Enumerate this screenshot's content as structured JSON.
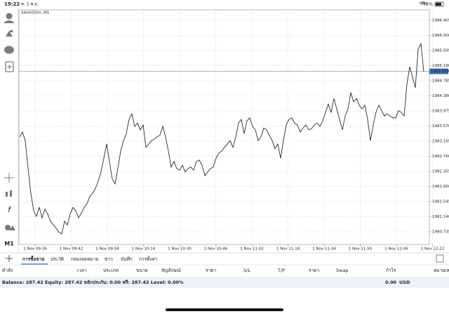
{
  "status_bar": {
    "time": "19:22",
    "date": "พ. 1 พ.ย.",
    "battery": "78%"
  },
  "chart": {
    "symbol": "XAUUSDm, M1",
    "timeframe_button": "M1",
    "ylim": [
      1980.396,
      1986.688
    ],
    "yticks": [
      1986.405,
      {
        "value": 1986,
        "label": "1986.000"
      },
      1985.595,
      {
        "value": 1985.19,
        "label": "1985.190"
      },
      1984.785,
      {
        "value": 1984.38,
        "label": "1984.380"
      },
      1983.975,
      {
        "value": 1983.57,
        "label": "1983.570"
      },
      1983.165,
      {
        "value": 1982.76,
        "label": "1982.760"
      },
      1982.355,
      {
        "value": 1981.95,
        "label": "1981.950"
      },
      1981.545,
      {
        "value": 1981.14,
        "label": "1981.140"
      },
      1980.735
    ],
    "current_price": 1985.039,
    "time_labels": [
      "1 Nov 09:26",
      "1 Nov 09:42",
      "1 Nov 09:58",
      "1 Nov 10:14",
      "1 Nov 10:30",
      "1 Nov 10:46",
      "1 Nov 11:02",
      "1 Nov 11:18",
      "1 Nov 11:34",
      "1 Nov 11:50",
      "1 Nov 12:06",
      "1 Nov 12:22"
    ],
    "prices": [
      1983.28,
      1983.41,
      1983.18,
      1982.43,
      1981.77,
      1981.3,
      1981.15,
      1981.39,
      1981.11,
      1981.34,
      1981.21,
      1981.02,
      1980.92,
      1980.83,
      1980.73,
      1980.68,
      1981.02,
      1980.92,
      1981.21,
      1981.39,
      1981.3,
      1981.11,
      1981.24,
      1981.39,
      1981.49,
      1981.68,
      1981.77,
      1981.9,
      1982.09,
      1982.34,
      1982.71,
      1983.09,
      1982.62,
      1982.15,
      1982.02,
      1982.43,
      1982.9,
      1983.18,
      1983.37,
      1983.75,
      1983.9,
      1983.56,
      1983.65,
      1983.47,
      1983.6,
      1983.0,
      1983.09,
      1983.18,
      1983.22,
      1983.28,
      1983.33,
      1983.56,
      1983.28,
      1982.9,
      1982.47,
      1982.62,
      1982.43,
      1982.39,
      1982.52,
      1982.34,
      1982.43,
      1982.47,
      1982.39,
      1982.62,
      1982.66,
      1982.52,
      1982.24,
      1982.34,
      1982.43,
      1982.47,
      1982.71,
      1982.85,
      1982.9,
      1983.0,
      1983.09,
      1983.18,
      1983.0,
      1983.28,
      1983.65,
      1983.75,
      1983.37,
      1983.71,
      1983.79,
      1983.56,
      1983.47,
      1983.18,
      1983.28,
      1983.52,
      1983.47,
      1983.32,
      1983.18,
      1982.96,
      1983.09,
      1982.71,
      1983.18,
      1983.6,
      1983.75,
      1983.79,
      1983.65,
      1983.6,
      1983.41,
      1983.52,
      1983.6,
      1983.47,
      1983.5,
      1983.6,
      1983.65,
      1983.56,
      1983.71,
      1983.94,
      1984.16,
      1983.94,
      1984.31,
      1984.03,
      1983.75,
      1983.47,
      1983.84,
      1984.03,
      1984.47,
      1984.22,
      1984.31,
      1984.13,
      1984.03,
      1984.13,
      1983.75,
      1983.18,
      1983.6,
      1983.94,
      1984.13,
      1983.98,
      1983.84,
      1983.9,
      1983.84,
      1983.79,
      1983.79,
      1983.98,
      1983.94,
      1983.84,
      1984.69,
      1985.16,
      1984.88,
      1984.6,
      1985.63,
      1985.78,
      1985.03
    ]
  },
  "tabs": [
    "การซื้อขาย",
    "ประวัติ",
    "กล่องจดหมาย",
    "ข่าว",
    "บันทึก",
    "การตั้งค่า"
  ],
  "table": {
    "columns": [
      "คำสั่ง",
      "เวลา",
      "ประเภท",
      "ขนาด",
      "สัญลักษณ์",
      "ราคา",
      "S/L",
      "T/P",
      "ราคา",
      "Swap",
      "กำไร",
      "หมายเหตุ"
    ]
  },
  "summary": {
    "text": "Balance: 287.42 Equity: 287.42 หลักประกัน: 0.00 ฟรี: 287.42 Level: 0.00%",
    "profit": "0.00",
    "currency": "USD"
  }
}
